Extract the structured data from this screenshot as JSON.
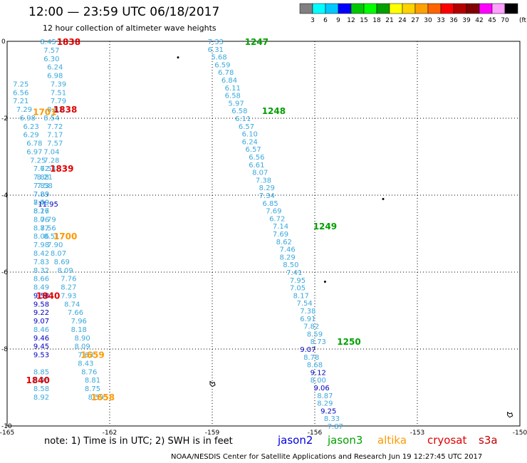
{
  "header": {
    "title": "12:00 — 23:59 UTC 06/18/2017",
    "subtitle": "12 hour collection of altimeter wave heights"
  },
  "legend": {
    "bins": [
      {
        "label": "3",
        "color": "#808080"
      },
      {
        "label": "6",
        "color": "#00ffff"
      },
      {
        "label": "9",
        "color": "#00c8ff"
      },
      {
        "label": "12",
        "color": "#0000ff"
      },
      {
        "label": "15",
        "color": "#00c800"
      },
      {
        "label": "18",
        "color": "#00ff00"
      },
      {
        "label": "21",
        "color": "#00a000"
      },
      {
        "label": "24",
        "color": "#ffff00"
      },
      {
        "label": "27",
        "color": "#ffd200"
      },
      {
        "label": "30",
        "color": "#ffa000"
      },
      {
        "label": "33",
        "color": "#ff6400"
      },
      {
        "label": "36",
        "color": "#ff0000"
      },
      {
        "label": "39",
        "color": "#b40000"
      },
      {
        "label": "42",
        "color": "#800000"
      },
      {
        "label": "45",
        "color": "#ff00ff"
      },
      {
        "label": "70",
        "color": "#ffa0ff"
      },
      {
        "label": "",
        "color": "#000000"
      }
    ],
    "unit": "(ft)"
  },
  "chart_data": {
    "type": "scatter",
    "xlim": [
      -165,
      -150
    ],
    "ylim": [
      -10,
      0
    ],
    "x_ticks": [
      "-165",
      "-162",
      "-159",
      "-156",
      "-153",
      "-150"
    ],
    "y_ticks": [
      "0",
      "-2",
      "-4",
      "-6",
      "-8",
      "-10"
    ],
    "colors": {
      "light": "#3aa8dc",
      "dark": "#0000c0",
      "red": "#e00000",
      "green": "#00a000",
      "orange": "#ff9900",
      "black": "#000000"
    },
    "points": [
      {
        "x": -163.8,
        "y": 0.0,
        "text": "8.45",
        "c": "light"
      },
      {
        "x": -163.7,
        "y": -0.22,
        "text": "7.57",
        "c": "light"
      },
      {
        "x": -163.7,
        "y": -0.44,
        "text": "6.30",
        "c": "light"
      },
      {
        "x": -163.6,
        "y": -0.66,
        "text": "6.24",
        "c": "light"
      },
      {
        "x": -163.6,
        "y": -0.88,
        "text": "6.98",
        "c": "light"
      },
      {
        "x": -163.5,
        "y": -1.1,
        "text": "7.39",
        "c": "light"
      },
      {
        "x": -163.5,
        "y": -1.32,
        "text": "7.51",
        "c": "light"
      },
      {
        "x": -163.5,
        "y": -1.54,
        "text": "7.79",
        "c": "light"
      },
      {
        "x": -163.6,
        "y": -1.76,
        "text": "8.83",
        "c": "light"
      },
      {
        "x": -163.7,
        "y": -1.98,
        "text": "8.54",
        "c": "light"
      },
      {
        "x": -163.6,
        "y": -2.2,
        "text": "7.72",
        "c": "light"
      },
      {
        "x": -163.6,
        "y": -2.42,
        "text": "7.17",
        "c": "light"
      },
      {
        "x": -163.6,
        "y": -2.64,
        "text": "7.57",
        "c": "light"
      },
      {
        "x": -163.7,
        "y": -2.86,
        "text": "7.04",
        "c": "light"
      },
      {
        "x": -163.7,
        "y": -3.08,
        "text": "7.28",
        "c": "light"
      },
      {
        "x": -163.8,
        "y": -3.3,
        "text": "7.54",
        "c": "light"
      },
      {
        "x": -163.9,
        "y": -3.52,
        "text": "8.21",
        "c": "light"
      },
      {
        "x": -163.9,
        "y": -3.74,
        "text": "7.58",
        "c": "light"
      },
      {
        "x": -164.0,
        "y": -3.96,
        "text": "7.83",
        "c": "light"
      },
      {
        "x": -164.0,
        "y": -4.18,
        "text": "7.59",
        "c": "light"
      },
      {
        "x": -164.0,
        "y": -4.4,
        "text": "8.17",
        "c": "light"
      },
      {
        "x": -163.8,
        "y": -4.62,
        "text": "7.79",
        "c": "light"
      },
      {
        "x": -163.8,
        "y": -4.84,
        "text": "8.56",
        "c": "light"
      },
      {
        "x": -163.7,
        "y": -5.06,
        "text": "8.51",
        "c": "light"
      },
      {
        "x": -163.6,
        "y": -5.28,
        "text": "7.90",
        "c": "light"
      },
      {
        "x": -163.5,
        "y": -5.5,
        "text": "8.07",
        "c": "light"
      },
      {
        "x": -163.4,
        "y": -5.72,
        "text": "8.69",
        "c": "light"
      },
      {
        "x": -163.3,
        "y": -5.94,
        "text": "8.09",
        "c": "light"
      },
      {
        "x": -163.2,
        "y": -6.16,
        "text": "7.76",
        "c": "light"
      },
      {
        "x": -163.2,
        "y": -6.38,
        "text": "8.27",
        "c": "light"
      },
      {
        "x": -163.2,
        "y": -6.6,
        "text": "7.93",
        "c": "light"
      },
      {
        "x": -163.1,
        "y": -6.82,
        "text": "8.74",
        "c": "light"
      },
      {
        "x": -163.0,
        "y": -7.04,
        "text": "7.66",
        "c": "light"
      },
      {
        "x": -162.9,
        "y": -7.26,
        "text": "7.96",
        "c": "light"
      },
      {
        "x": -162.9,
        "y": -7.48,
        "text": "8.18",
        "c": "light"
      },
      {
        "x": -162.8,
        "y": -7.7,
        "text": "8.90",
        "c": "light"
      },
      {
        "x": -162.8,
        "y": -7.92,
        "text": "8.09",
        "c": "light"
      },
      {
        "x": -162.7,
        "y": -8.14,
        "text": "7.63",
        "c": "light"
      },
      {
        "x": -162.7,
        "y": -8.36,
        "text": "8.43",
        "c": "light"
      },
      {
        "x": -162.6,
        "y": -8.58,
        "text": "8.76",
        "c": "light"
      },
      {
        "x": -162.5,
        "y": -8.8,
        "text": "8.81",
        "c": "light"
      },
      {
        "x": -162.5,
        "y": -9.02,
        "text": "8.75",
        "c": "light"
      },
      {
        "x": -162.4,
        "y": -9.24,
        "text": "8.59",
        "c": "light"
      },
      {
        "x": -164.6,
        "y": -1.1,
        "text": "7.25",
        "c": "light"
      },
      {
        "x": -164.6,
        "y": -1.32,
        "text": "6.56",
        "c": "light"
      },
      {
        "x": -164.6,
        "y": -1.54,
        "text": "7.21",
        "c": "light"
      },
      {
        "x": -164.5,
        "y": -1.76,
        "text": "7.29",
        "c": "light"
      },
      {
        "x": -164.4,
        "y": -1.98,
        "text": "6.98",
        "c": "light"
      },
      {
        "x": -164.3,
        "y": -2.2,
        "text": "6.23",
        "c": "light"
      },
      {
        "x": -164.3,
        "y": -2.42,
        "text": "6.29",
        "c": "light"
      },
      {
        "x": -164.2,
        "y": -2.64,
        "text": "6.78",
        "c": "light"
      },
      {
        "x": -164.2,
        "y": -2.86,
        "text": "6.97",
        "c": "light"
      },
      {
        "x": -164.1,
        "y": -3.08,
        "text": "7.25",
        "c": "light"
      },
      {
        "x": -164.0,
        "y": -3.3,
        "text": "7.62",
        "c": "light"
      },
      {
        "x": -164.0,
        "y": -3.52,
        "text": "7.88",
        "c": "light"
      },
      {
        "x": -164.0,
        "y": -3.74,
        "text": "7.83",
        "c": "light"
      },
      {
        "x": -164.0,
        "y": -3.96,
        "text": "7.89",
        "c": "light"
      },
      {
        "x": -164.0,
        "y": -4.18,
        "text": "8.49",
        "c": "light"
      },
      {
        "x": -164.0,
        "y": -4.4,
        "text": "8.26",
        "c": "light"
      },
      {
        "x": -164.0,
        "y": -4.62,
        "text": "8.06",
        "c": "light"
      },
      {
        "x": -164.0,
        "y": -4.84,
        "text": "8.77",
        "c": "light"
      },
      {
        "x": -164.0,
        "y": -5.06,
        "text": "8.06",
        "c": "light"
      },
      {
        "x": -164.0,
        "y": -5.28,
        "text": "7.98",
        "c": "light"
      },
      {
        "x": -164.0,
        "y": -5.5,
        "text": "8.42",
        "c": "light"
      },
      {
        "x": -164.0,
        "y": -5.72,
        "text": "7.83",
        "c": "light"
      },
      {
        "x": -164.0,
        "y": -5.94,
        "text": "8.32",
        "c": "light"
      },
      {
        "x": -164.0,
        "y": -6.16,
        "text": "8.66",
        "c": "light"
      },
      {
        "x": -164.0,
        "y": -6.38,
        "text": "8.49",
        "c": "light"
      },
      {
        "x": -164.0,
        "y": -6.6,
        "text": "9.58",
        "c": "dark"
      },
      {
        "x": -164.0,
        "y": -6.82,
        "text": "9.58",
        "c": "dark"
      },
      {
        "x": -164.0,
        "y": -7.04,
        "text": "9.22",
        "c": "dark"
      },
      {
        "x": -164.0,
        "y": -7.26,
        "text": "9.07",
        "c": "dark"
      },
      {
        "x": -164.0,
        "y": -7.48,
        "text": "8.46",
        "c": "light"
      },
      {
        "x": -164.0,
        "y": -7.7,
        "text": "9.46",
        "c": "dark"
      },
      {
        "x": -164.0,
        "y": -7.92,
        "text": "9.45",
        "c": "dark"
      },
      {
        "x": -164.0,
        "y": -8.14,
        "text": "9.53",
        "c": "dark"
      },
      {
        "x": -164.0,
        "y": -8.58,
        "text": "8.85",
        "c": "light"
      },
      {
        "x": -164.0,
        "y": -8.8,
        "text": "8.96",
        "c": "light"
      },
      {
        "x": -164.0,
        "y": -9.02,
        "text": "8.58",
        "c": "light"
      },
      {
        "x": -164.0,
        "y": -9.24,
        "text": "8.92",
        "c": "light"
      },
      {
        "x": -163.8,
        "y": -4.22,
        "text": "11.95",
        "c": "dark"
      },
      {
        "x": -158.9,
        "y": 0.0,
        "text": "7.33",
        "c": "light"
      },
      {
        "x": -158.9,
        "y": -0.2,
        "text": "6.31",
        "c": "light"
      },
      {
        "x": -158.8,
        "y": -0.4,
        "text": "5.68",
        "c": "light"
      },
      {
        "x": -158.7,
        "y": -0.6,
        "text": "6.59",
        "c": "light"
      },
      {
        "x": -158.6,
        "y": -0.8,
        "text": "6.78",
        "c": "light"
      },
      {
        "x": -158.5,
        "y": -1.0,
        "text": "6.84",
        "c": "light"
      },
      {
        "x": -158.4,
        "y": -1.2,
        "text": "6.11",
        "c": "light"
      },
      {
        "x": -158.4,
        "y": -1.4,
        "text": "6.58",
        "c": "light"
      },
      {
        "x": -158.3,
        "y": -1.6,
        "text": "5.97",
        "c": "light"
      },
      {
        "x": -158.2,
        "y": -1.8,
        "text": "6.58",
        "c": "light"
      },
      {
        "x": -158.1,
        "y": -2.0,
        "text": "6.11",
        "c": "light"
      },
      {
        "x": -158.0,
        "y": -2.2,
        "text": "6.57",
        "c": "light"
      },
      {
        "x": -157.9,
        "y": -2.4,
        "text": "6.10",
        "c": "light"
      },
      {
        "x": -157.9,
        "y": -2.6,
        "text": "6.24",
        "c": "light"
      },
      {
        "x": -157.8,
        "y": -2.8,
        "text": "6.57",
        "c": "light"
      },
      {
        "x": -157.7,
        "y": -3.0,
        "text": "6.56",
        "c": "light"
      },
      {
        "x": -157.7,
        "y": -3.2,
        "text": "6.61",
        "c": "light"
      },
      {
        "x": -157.6,
        "y": -3.4,
        "text": "8.07",
        "c": "light"
      },
      {
        "x": -157.5,
        "y": -3.6,
        "text": "7.38",
        "c": "light"
      },
      {
        "x": -157.4,
        "y": -3.8,
        "text": "8.29",
        "c": "light"
      },
      {
        "x": -157.4,
        "y": -4.0,
        "text": "7.34",
        "c": "light"
      },
      {
        "x": -157.3,
        "y": -4.2,
        "text": "6.85",
        "c": "light"
      },
      {
        "x": -157.2,
        "y": -4.4,
        "text": "7.69",
        "c": "light"
      },
      {
        "x": -157.1,
        "y": -4.6,
        "text": "6.72",
        "c": "light"
      },
      {
        "x": -157.0,
        "y": -4.8,
        "text": "7.14",
        "c": "light"
      },
      {
        "x": -157.0,
        "y": -5.0,
        "text": "7.69",
        "c": "light"
      },
      {
        "x": -156.9,
        "y": -5.2,
        "text": "8.62",
        "c": "light"
      },
      {
        "x": -156.8,
        "y": -5.4,
        "text": "7.46",
        "c": "light"
      },
      {
        "x": -156.8,
        "y": -5.6,
        "text": "8.29",
        "c": "light"
      },
      {
        "x": -156.7,
        "y": -5.8,
        "text": "8.50",
        "c": "light"
      },
      {
        "x": -156.6,
        "y": -6.0,
        "text": "7.41",
        "c": "light"
      },
      {
        "x": -156.5,
        "y": -6.2,
        "text": "7.95",
        "c": "light"
      },
      {
        "x": -156.5,
        "y": -6.4,
        "text": "7.05",
        "c": "light"
      },
      {
        "x": -156.4,
        "y": -6.6,
        "text": "8.17",
        "c": "light"
      },
      {
        "x": -156.3,
        "y": -6.8,
        "text": "7.54",
        "c": "light"
      },
      {
        "x": -156.2,
        "y": -7.0,
        "text": "7.38",
        "c": "light"
      },
      {
        "x": -156.2,
        "y": -7.2,
        "text": "6.91",
        "c": "light"
      },
      {
        "x": -156.1,
        "y": -7.4,
        "text": "7.82",
        "c": "light"
      },
      {
        "x": -156.0,
        "y": -7.6,
        "text": "8.59",
        "c": "light"
      },
      {
        "x": -155.9,
        "y": -7.8,
        "text": "8.73",
        "c": "light"
      },
      {
        "x": -156.2,
        "y": -8.0,
        "text": "9.07",
        "c": "dark"
      },
      {
        "x": -156.1,
        "y": -8.2,
        "text": "8.78",
        "c": "light"
      },
      {
        "x": -156.0,
        "y": -8.4,
        "text": "8.68",
        "c": "light"
      },
      {
        "x": -155.9,
        "y": -8.6,
        "text": "9.12",
        "c": "dark"
      },
      {
        "x": -155.9,
        "y": -8.8,
        "text": "8.00",
        "c": "light"
      },
      {
        "x": -155.8,
        "y": -9.0,
        "text": "9.06",
        "c": "dark"
      },
      {
        "x": -155.7,
        "y": -9.2,
        "text": "8.87",
        "c": "light"
      },
      {
        "x": -155.7,
        "y": -9.4,
        "text": "8.29",
        "c": "light"
      },
      {
        "x": -155.6,
        "y": -9.6,
        "text": "9.25",
        "c": "dark"
      },
      {
        "x": -155.5,
        "y": -9.8,
        "text": "8.33",
        "c": "light"
      },
      {
        "x": -155.4,
        "y": -10.0,
        "text": "7.87",
        "c": "light"
      }
    ],
    "time_labels": [
      {
        "x": -163.2,
        "y": 0.0,
        "text": "1838",
        "c": "red"
      },
      {
        "x": -163.3,
        "y": -1.76,
        "text": "1838",
        "c": "red"
      },
      {
        "x": -163.4,
        "y": -3.3,
        "text": "1839",
        "c": "red"
      },
      {
        "x": -163.8,
        "y": -6.6,
        "text": "1840",
        "c": "red"
      },
      {
        "x": -164.1,
        "y": -8.8,
        "text": "1840",
        "c": "red"
      },
      {
        "x": -157.7,
        "y": 0.0,
        "text": "1247",
        "c": "green"
      },
      {
        "x": -157.2,
        "y": -1.8,
        "text": "1248",
        "c": "green"
      },
      {
        "x": -155.7,
        "y": -4.8,
        "text": "1249",
        "c": "green"
      },
      {
        "x": -155.0,
        "y": -7.8,
        "text": "1250",
        "c": "green"
      },
      {
        "x": -163.9,
        "y": -1.82,
        "text": "1701",
        "c": "orange"
      },
      {
        "x": -163.3,
        "y": -5.06,
        "text": "1700",
        "c": "orange"
      },
      {
        "x": -162.5,
        "y": -8.14,
        "text": "1659",
        "c": "orange"
      },
      {
        "x": -162.2,
        "y": -9.24,
        "text": "1658",
        "c": "orange"
      }
    ],
    "markers": [
      {
        "x": -160.0,
        "y": -0.42,
        "c": "black",
        "shape": "dot"
      },
      {
        "x": -154.0,
        "y": -4.1,
        "c": "black",
        "shape": "dot"
      },
      {
        "x": -155.7,
        "y": -6.25,
        "c": "black",
        "shape": "dot"
      },
      {
        "x": -159.0,
        "y": -8.9,
        "c": "black",
        "shape": "island"
      },
      {
        "x": -150.3,
        "y": -9.7,
        "c": "black",
        "shape": "island"
      }
    ]
  },
  "footer": {
    "note": "note: 1) Time is in UTC; 2) SWH is in feet",
    "sats": [
      {
        "label": "jason2",
        "color": "#0000e0"
      },
      {
        "label": "jason3",
        "color": "#00a000"
      },
      {
        "label": "altika",
        "color": "#ff9900"
      },
      {
        "label": "cryosat",
        "color": "#e00000"
      },
      {
        "label": "s3a",
        "color": "#c00000"
      }
    ],
    "credit": "NOAA/NESDIS Center for Satellite Applications and Research    Jun 19 12:27:45 UTC 2017"
  }
}
